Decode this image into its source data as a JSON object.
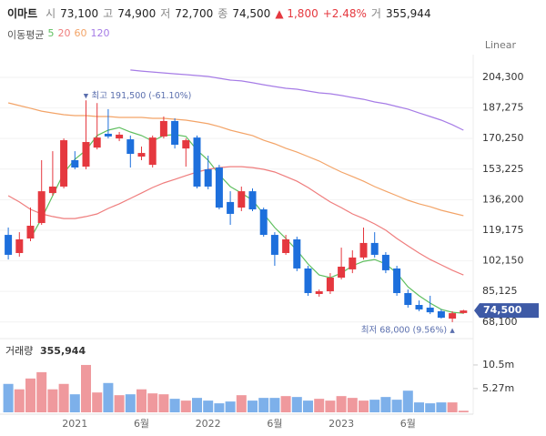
{
  "header": {
    "name": "이마트",
    "fields": [
      {
        "label": "시",
        "value": "73,100"
      },
      {
        "label": "고",
        "value": "74,900"
      },
      {
        "label": "저",
        "value": "72,700"
      },
      {
        "label": "종",
        "value": "74,500"
      }
    ],
    "change": "▲ 1,800",
    "change_pct": "+2.48%",
    "volume_label": "거",
    "volume": "355,944"
  },
  "chart_data": [
    {
      "type": "candlestick",
      "scale": "Linear",
      "legend_title": "이동평균",
      "ylim": [
        62400,
        211900
      ],
      "yticks": [
        {
          "value": 68100,
          "label": "68,100"
        },
        {
          "value": 85125,
          "label": "85,125"
        },
        {
          "value": 102150,
          "label": "102,150"
        },
        {
          "value": 119175,
          "label": "119,175"
        },
        {
          "value": 136200,
          "label": "136,200"
        },
        {
          "value": 153225,
          "label": "153,225"
        },
        {
          "value": 170250,
          "label": "170,250"
        },
        {
          "value": 187275,
          "label": "187,275"
        },
        {
          "value": 204300,
          "label": "204,300"
        }
      ],
      "grid": true,
      "up_color": "#e5383f",
      "down_color": "#1d6fdc",
      "open": [
        116600,
        106500,
        114600,
        123200,
        139900,
        143500,
        158200,
        154600,
        165200,
        172900,
        170300,
        169800,
        160200,
        155600,
        171400,
        180000,
        164700,
        170800,
        153100,
        154100,
        134900,
        131800,
        140900,
        130800,
        116600,
        106500,
        114100,
        97900,
        83700,
        85200,
        92800,
        97400,
        104000,
        112100,
        105500,
        97900,
        84200,
        77600,
        76100,
        74100,
        70000,
        73100
      ],
      "high": [
        120700,
        118100,
        131800,
        158200,
        163200,
        170300,
        163200,
        191500,
        190000,
        186600,
        173900,
        171900,
        165800,
        171900,
        182500,
        181500,
        170300,
        171900,
        160700,
        155600,
        140900,
        143500,
        142500,
        131800,
        118100,
        116600,
        115600,
        99400,
        86200,
        95300,
        109500,
        108000,
        120700,
        118100,
        107000,
        99400,
        86200,
        80100,
        82700,
        75100,
        74100,
        74900
      ],
      "low": [
        102900,
        104500,
        113100,
        122200,
        138400,
        142500,
        153100,
        153100,
        164200,
        170300,
        168800,
        154100,
        158200,
        154100,
        170300,
        164700,
        154600,
        142500,
        142000,
        130800,
        122200,
        129800,
        129800,
        115600,
        99400,
        105500,
        96400,
        82700,
        82200,
        83700,
        91800,
        95300,
        102900,
        104000,
        95300,
        82700,
        76100,
        74100,
        72500,
        70000,
        68000,
        72700
      ],
      "close": [
        105500,
        114100,
        121700,
        140900,
        143500,
        169300,
        154100,
        168300,
        170800,
        171400,
        172400,
        161700,
        162200,
        170800,
        180000,
        166800,
        169300,
        143500,
        143500,
        131800,
        128300,
        140900,
        130800,
        116600,
        105500,
        114100,
        97900,
        84200,
        85200,
        92800,
        98900,
        104000,
        112100,
        105500,
        96900,
        84200,
        77600,
        75100,
        73500,
        70500,
        73000,
        74500
      ],
      "series": [
        {
          "name": "5",
          "color": "#5fbf5f",
          "values": [
            null,
            null,
            114600,
            125700,
            138400,
            151100,
            158700,
            163800,
            171900,
            174900,
            176400,
            173900,
            171900,
            168800,
            171900,
            172400,
            171400,
            163800,
            158200,
            150100,
            143500,
            139900,
            135900,
            128300,
            120700,
            114600,
            108000,
            100400,
            94300,
            92800,
            95300,
            99400,
            101900,
            102900,
            100400,
            95300,
            87700,
            82700,
            78600,
            75100,
            73500,
            73000
          ]
        },
        {
          "name": "20",
          "color": "#ef7d7d",
          "values": [
            138400,
            134900,
            130800,
            128300,
            126800,
            125700,
            125700,
            126800,
            128300,
            131300,
            133900,
            136900,
            139900,
            143000,
            145500,
            147500,
            149600,
            151600,
            153100,
            154100,
            154600,
            154600,
            154100,
            153100,
            151600,
            149100,
            146500,
            143000,
            138900,
            134900,
            131800,
            128300,
            125700,
            122700,
            119200,
            114600,
            110500,
            106500,
            102900,
            99900,
            96900,
            94300
          ]
        },
        {
          "name": "60",
          "color": "#f3a468",
          "values": [
            190100,
            188600,
            187100,
            185500,
            184500,
            183500,
            183000,
            183000,
            182500,
            182500,
            182000,
            182000,
            182000,
            181500,
            181500,
            181000,
            180500,
            179500,
            178500,
            176900,
            174900,
            173400,
            171900,
            169300,
            167300,
            164800,
            162700,
            160200,
            157700,
            154600,
            151600,
            149100,
            146500,
            143500,
            140900,
            138400,
            135900,
            133900,
            132300,
            130300,
            128800,
            127300
          ]
        },
        {
          "name": "120",
          "color": "#a67ce6",
          "values": [
            null,
            null,
            null,
            null,
            null,
            null,
            null,
            null,
            null,
            null,
            null,
            208400,
            207800,
            207300,
            206800,
            206300,
            205800,
            205300,
            204800,
            203800,
            202800,
            202300,
            201300,
            200200,
            199200,
            198200,
            197700,
            196700,
            195700,
            195200,
            194200,
            193100,
            192100,
            190600,
            189600,
            188100,
            186600,
            184500,
            182500,
            180500,
            177900,
            174900
          ]
        }
      ],
      "last_label": "74,500",
      "high_label": "최고 191,500 (-61.10%)",
      "low_label": "최저 68,000 (9.56%)"
    },
    {
      "type": "bar",
      "title": "거래량",
      "subtitle": "355,944",
      "ylim": [
        0,
        11700000
      ],
      "yticks": [
        {
          "value": 5270000,
          "label": "5.27m"
        },
        {
          "value": 10500000,
          "label": "10.5m"
        }
      ],
      "up_color": "#ef999d",
      "down_color": "#7db0ea",
      "categories": [
        null,
        null,
        null,
        null,
        null,
        null,
        "2021",
        null,
        null,
        null,
        null,
        null,
        "6월",
        null,
        null,
        null,
        null,
        null,
        "2022",
        null,
        null,
        null,
        null,
        null,
        "6월",
        null,
        null,
        null,
        null,
        null,
        "2023",
        null,
        null,
        null,
        null,
        null,
        "6월",
        null,
        null,
        null,
        null,
        null
      ],
      "values": [
        6300000,
        5100000,
        7500000,
        8900000,
        5100000,
        6300000,
        4000000,
        10500000,
        4400000,
        6500000,
        3800000,
        4000000,
        5100000,
        4200000,
        4000000,
        3000000,
        2600000,
        3200000,
        2600000,
        2000000,
        2400000,
        3800000,
        2600000,
        3200000,
        3200000,
        3600000,
        3400000,
        2600000,
        3000000,
        2600000,
        3600000,
        3200000,
        2600000,
        2800000,
        3400000,
        2800000,
        4800000,
        2200000,
        2000000,
        2200000,
        2200000,
        355944
      ]
    }
  ]
}
